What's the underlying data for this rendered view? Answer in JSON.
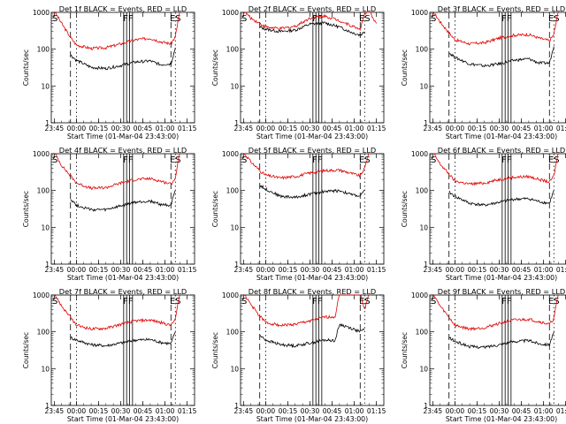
{
  "chart_data": [
    {
      "type": "line",
      "title": "Det 1f BLACK = Events, RED = LLD",
      "xlabel": "Start Time (01-Mar-04 23:43:00)",
      "ylabel": "Counts/sec",
      "yscale": "log",
      "ylim": [
        1,
        1000
      ],
      "xlim": [
        -2,
        95
      ],
      "x_ticks": [
        "23:45",
        "00:00",
        "00:15",
        "00:30",
        "00:45",
        "01:00",
        "01:15"
      ],
      "y_ticks": [
        "1",
        "10",
        "100",
        "1000"
      ],
      "event_labels": [
        "S",
        "FF",
        "ES"
      ],
      "dash_lines": [
        11,
        15,
        79,
        82
      ],
      "solid_lines": [
        47,
        49,
        51,
        53
      ],
      "series": [
        {
          "name": "Events",
          "color": "#000000",
          "x": [
            11,
            15,
            25,
            35,
            45,
            55,
            65,
            72,
            79,
            82
          ],
          "y": [
            70,
            50,
            32,
            30,
            36,
            45,
            48,
            38,
            40,
            110
          ]
        },
        {
          "name": "LLD",
          "color": "#e00000",
          "x": [
            0,
            5,
            11,
            15,
            25,
            35,
            45,
            55,
            65,
            72,
            79,
            82,
            85
          ],
          "y": [
            1100,
            500,
            210,
            130,
            105,
            110,
            140,
            180,
            200,
            160,
            140,
            220,
            1100
          ]
        }
      ]
    },
    {
      "type": "line",
      "title": "Det 2f BLACK = Events, RED = LLD",
      "xlabel": "Start Time (01-Mar-04 23:43:00)",
      "ylabel": "Counts/sec",
      "yscale": "log",
      "ylim": [
        1,
        1000
      ],
      "xlim": [
        -2,
        95
      ],
      "x_ticks": [
        "23:45",
        "00:00",
        "00:15",
        "00:30",
        "00:45",
        "01:00",
        "01:15"
      ],
      "y_ticks": [
        "1",
        "10",
        "100",
        "1000"
      ],
      "event_labels": [
        "S",
        "FF",
        "ES"
      ],
      "dash_lines": [
        11,
        15,
        79,
        82
      ],
      "solid_lines": [
        47,
        49,
        51,
        53
      ],
      "series": [
        {
          "name": "Events",
          "color": "#000000",
          "x": [
            11,
            15,
            25,
            35,
            45,
            55,
            65,
            72,
            79,
            82
          ],
          "y": [
            400,
            350,
            300,
            330,
            480,
            520,
            400,
            300,
            240,
            300
          ]
        },
        {
          "name": "LLD",
          "color": "#e00000",
          "x": [
            0,
            5,
            11,
            15,
            25,
            35,
            45,
            55,
            65,
            72,
            79,
            82,
            85,
            90
          ],
          "y": [
            1100,
            700,
            500,
            400,
            360,
            420,
            700,
            800,
            600,
            450,
            350,
            900,
            1100,
            500
          ]
        }
      ]
    },
    {
      "type": "line",
      "title": "Det 3f BLACK = Events, RED = LLD",
      "xlabel": "Start Time (01-Mar-04 23:43:00)",
      "ylabel": "Counts/sec",
      "yscale": "log",
      "ylim": [
        1,
        1000
      ],
      "xlim": [
        -2,
        95
      ],
      "x_ticks": [
        "23:45",
        "00:00",
        "00:15",
        "00:30",
        "00:45",
        "01:00",
        "01:15"
      ],
      "y_ticks": [
        "1",
        "10",
        "100",
        "1000"
      ],
      "event_labels": [
        "S",
        "FF",
        "ES"
      ],
      "dash_lines": [
        11,
        15,
        79,
        82
      ],
      "solid_lines": [
        47,
        49,
        51,
        53
      ],
      "series": [
        {
          "name": "Events",
          "color": "#000000",
          "x": [
            11,
            15,
            25,
            35,
            45,
            55,
            65,
            72,
            79,
            82
          ],
          "y": [
            80,
            60,
            40,
            35,
            40,
            50,
            55,
            42,
            42,
            120
          ]
        },
        {
          "name": "LLD",
          "color": "#e00000",
          "x": [
            0,
            5,
            11,
            15,
            25,
            35,
            45,
            55,
            65,
            72,
            79,
            82,
            85
          ],
          "y": [
            1100,
            550,
            280,
            180,
            140,
            150,
            200,
            240,
            250,
            200,
            170,
            250,
            1100
          ]
        }
      ]
    },
    {
      "type": "line",
      "title": "Det 4f BLACK = Events, RED = LLD",
      "xlabel": "Start Time (01-Mar-04 23:43:00)",
      "ylabel": "Counts/sec",
      "yscale": "log",
      "ylim": [
        1,
        1000
      ],
      "xlim": [
        -2,
        95
      ],
      "x_ticks": [
        "23:45",
        "00:00",
        "00:15",
        "00:30",
        "00:45",
        "01:00",
        "01:15"
      ],
      "y_ticks": [
        "1",
        "10",
        "100",
        "1000"
      ],
      "event_labels": [
        "S",
        "FF",
        "ES"
      ],
      "dash_lines": [
        11,
        15,
        79,
        82
      ],
      "solid_lines": [
        47,
        49,
        51,
        53
      ],
      "series": [
        {
          "name": "Events",
          "color": "#000000",
          "x": [
            11,
            15,
            25,
            35,
            45,
            55,
            65,
            72,
            79,
            82
          ],
          "y": [
            60,
            40,
            30,
            30,
            38,
            48,
            52,
            42,
            40,
            100
          ]
        },
        {
          "name": "LLD",
          "color": "#e00000",
          "x": [
            0,
            5,
            11,
            15,
            25,
            35,
            45,
            55,
            65,
            72,
            79,
            82,
            85
          ],
          "y": [
            1100,
            480,
            250,
            160,
            115,
            120,
            160,
            200,
            210,
            180,
            150,
            220,
            1100
          ]
        }
      ]
    },
    {
      "type": "line",
      "title": "Det 5f BLACK = Events, RED = LLD",
      "xlabel": "Start Time (01-Mar-04 23:43:00)",
      "ylabel": "Counts/sec",
      "yscale": "log",
      "ylim": [
        1,
        1000
      ],
      "xlim": [
        -2,
        95
      ],
      "x_ticks": [
        "23:45",
        "00:00",
        "00:15",
        "00:30",
        "00:45",
        "01:00",
        "01:15"
      ],
      "y_ticks": [
        "1",
        "10",
        "100",
        "1000"
      ],
      "event_labels": [
        "S",
        "FF",
        "ES"
      ],
      "dash_lines": [
        11,
        15,
        79,
        82
      ],
      "solid_lines": [
        47,
        49,
        51,
        53
      ],
      "series": [
        {
          "name": "Events",
          "color": "#000000",
          "x": [
            11,
            15,
            25,
            35,
            45,
            55,
            65,
            72,
            79,
            82
          ],
          "y": [
            140,
            110,
            70,
            65,
            80,
            95,
            100,
            80,
            70,
            100
          ]
        },
        {
          "name": "LLD",
          "color": "#e00000",
          "x": [
            0,
            5,
            11,
            15,
            25,
            35,
            45,
            55,
            65,
            72,
            79,
            82,
            85
          ],
          "y": [
            1100,
            600,
            350,
            260,
            220,
            240,
            300,
            350,
            360,
            300,
            250,
            400,
            1100
          ]
        }
      ]
    },
    {
      "type": "line",
      "title": "Det 6f BLACK = Events, RED = LLD",
      "xlabel": "Start Time (01-Mar-04 23:43:00)",
      "ylabel": "Counts/sec",
      "yscale": "log",
      "ylim": [
        1,
        1000
      ],
      "xlim": [
        -2,
        95
      ],
      "x_ticks": [
        "23:45",
        "00:00",
        "00:15",
        "00:30",
        "00:45",
        "01:00",
        "01:15"
      ],
      "y_ticks": [
        "1",
        "10",
        "100",
        "1000"
      ],
      "event_labels": [
        "S",
        "FF",
        "ES"
      ],
      "dash_lines": [
        11,
        15,
        79,
        82
      ],
      "solid_lines": [
        47,
        49,
        51,
        53
      ],
      "series": [
        {
          "name": "Events",
          "color": "#000000",
          "x": [
            11,
            15,
            25,
            35,
            45,
            55,
            65,
            72,
            79,
            82
          ],
          "y": [
            90,
            70,
            45,
            40,
            48,
            58,
            60,
            50,
            45,
            100
          ]
        },
        {
          "name": "LLD",
          "color": "#e00000",
          "x": [
            0,
            5,
            11,
            15,
            25,
            35,
            45,
            55,
            65,
            72,
            79,
            82,
            85
          ],
          "y": [
            1100,
            520,
            280,
            180,
            150,
            160,
            200,
            230,
            240,
            200,
            170,
            250,
            1100
          ]
        }
      ]
    },
    {
      "type": "line",
      "title": "Det 7f BLACK = Events, RED = LLD",
      "xlabel": "Start Time (01-Mar-04 23:43:00)",
      "ylabel": "Counts/sec",
      "yscale": "log",
      "ylim": [
        1,
        1000
      ],
      "xlim": [
        -2,
        95
      ],
      "x_ticks": [
        "23:45",
        "00:00",
        "00:15",
        "00:30",
        "00:45",
        "01:00",
        "01:15"
      ],
      "y_ticks": [
        "1",
        "10",
        "100",
        "1000"
      ],
      "event_labels": [
        "S",
        "FF",
        "ES"
      ],
      "dash_lines": [
        11,
        15,
        79,
        82
      ],
      "solid_lines": [
        47,
        49,
        51,
        53
      ],
      "series": [
        {
          "name": "Events",
          "color": "#000000",
          "x": [
            11,
            15,
            25,
            35,
            45,
            55,
            65,
            72,
            79,
            82
          ],
          "y": [
            70,
            60,
            45,
            42,
            50,
            60,
            62,
            52,
            48,
            100
          ]
        },
        {
          "name": "LLD",
          "color": "#e00000",
          "x": [
            0,
            5,
            11,
            15,
            25,
            35,
            45,
            55,
            65,
            72,
            79,
            82,
            85
          ],
          "y": [
            1100,
            500,
            250,
            150,
            120,
            125,
            160,
            200,
            210,
            180,
            150,
            220,
            1100
          ]
        }
      ]
    },
    {
      "type": "line",
      "title": "Det 8f BLACK = Events, RED = LLD",
      "xlabel": "Start Time (01-Mar-04 23:43:00)",
      "ylabel": "Counts/sec",
      "yscale": "log",
      "ylim": [
        1,
        1000
      ],
      "xlim": [
        -2,
        95
      ],
      "x_ticks": [
        "23:45",
        "00:00",
        "00:15",
        "00:30",
        "00:45",
        "01:00",
        "01:15"
      ],
      "y_ticks": [
        "1",
        "10",
        "100",
        "1000"
      ],
      "event_labels": [
        "S",
        "FF",
        "ES"
      ],
      "dash_lines": [
        11,
        15,
        79,
        82
      ],
      "solid_lines": [
        47,
        49,
        51,
        53
      ],
      "series": [
        {
          "name": "Events",
          "color": "#000000",
          "x": [
            11,
            15,
            25,
            35,
            45,
            55,
            62,
            65,
            72,
            79,
            82
          ],
          "y": [
            80,
            60,
            45,
            42,
            50,
            60,
            58,
            160,
            130,
            100,
            120
          ]
        },
        {
          "name": "LLD",
          "color": "#e00000",
          "x": [
            0,
            5,
            11,
            15,
            25,
            35,
            45,
            55,
            62,
            65,
            72,
            79,
            82,
            85
          ],
          "y": [
            1100,
            550,
            270,
            180,
            150,
            160,
            200,
            250,
            260,
            1100,
            1100,
            1100,
            400,
            1100
          ]
        }
      ]
    },
    {
      "type": "line",
      "title": "Det 9f BLACK = Events, RED = LLD",
      "xlabel": "Start Time (01-Mar-04 23:43:00)",
      "ylabel": "Counts/sec",
      "yscale": "log",
      "ylim": [
        1,
        1000
      ],
      "xlim": [
        -2,
        95
      ],
      "x_ticks": [
        "23:45",
        "00:00",
        "00:15",
        "00:30",
        "00:45",
        "01:00",
        "01:15"
      ],
      "y_ticks": [
        "1",
        "10",
        "100",
        "1000"
      ],
      "event_labels": [
        "S",
        "FF",
        "ES"
      ],
      "dash_lines": [
        11,
        15,
        79,
        82
      ],
      "solid_lines": [
        47,
        49,
        51,
        53
      ],
      "series": [
        {
          "name": "Events",
          "color": "#000000",
          "x": [
            11,
            15,
            25,
            35,
            45,
            55,
            65,
            72,
            79,
            82
          ],
          "y": [
            70,
            55,
            40,
            38,
            45,
            55,
            58,
            48,
            45,
            100
          ]
        },
        {
          "name": "LLD",
          "color": "#e00000",
          "x": [
            0,
            5,
            11,
            15,
            25,
            35,
            45,
            55,
            65,
            72,
            79,
            82,
            85
          ],
          "y": [
            1100,
            500,
            250,
            150,
            120,
            130,
            170,
            210,
            220,
            190,
            160,
            230,
            1100
          ]
        }
      ]
    }
  ]
}
